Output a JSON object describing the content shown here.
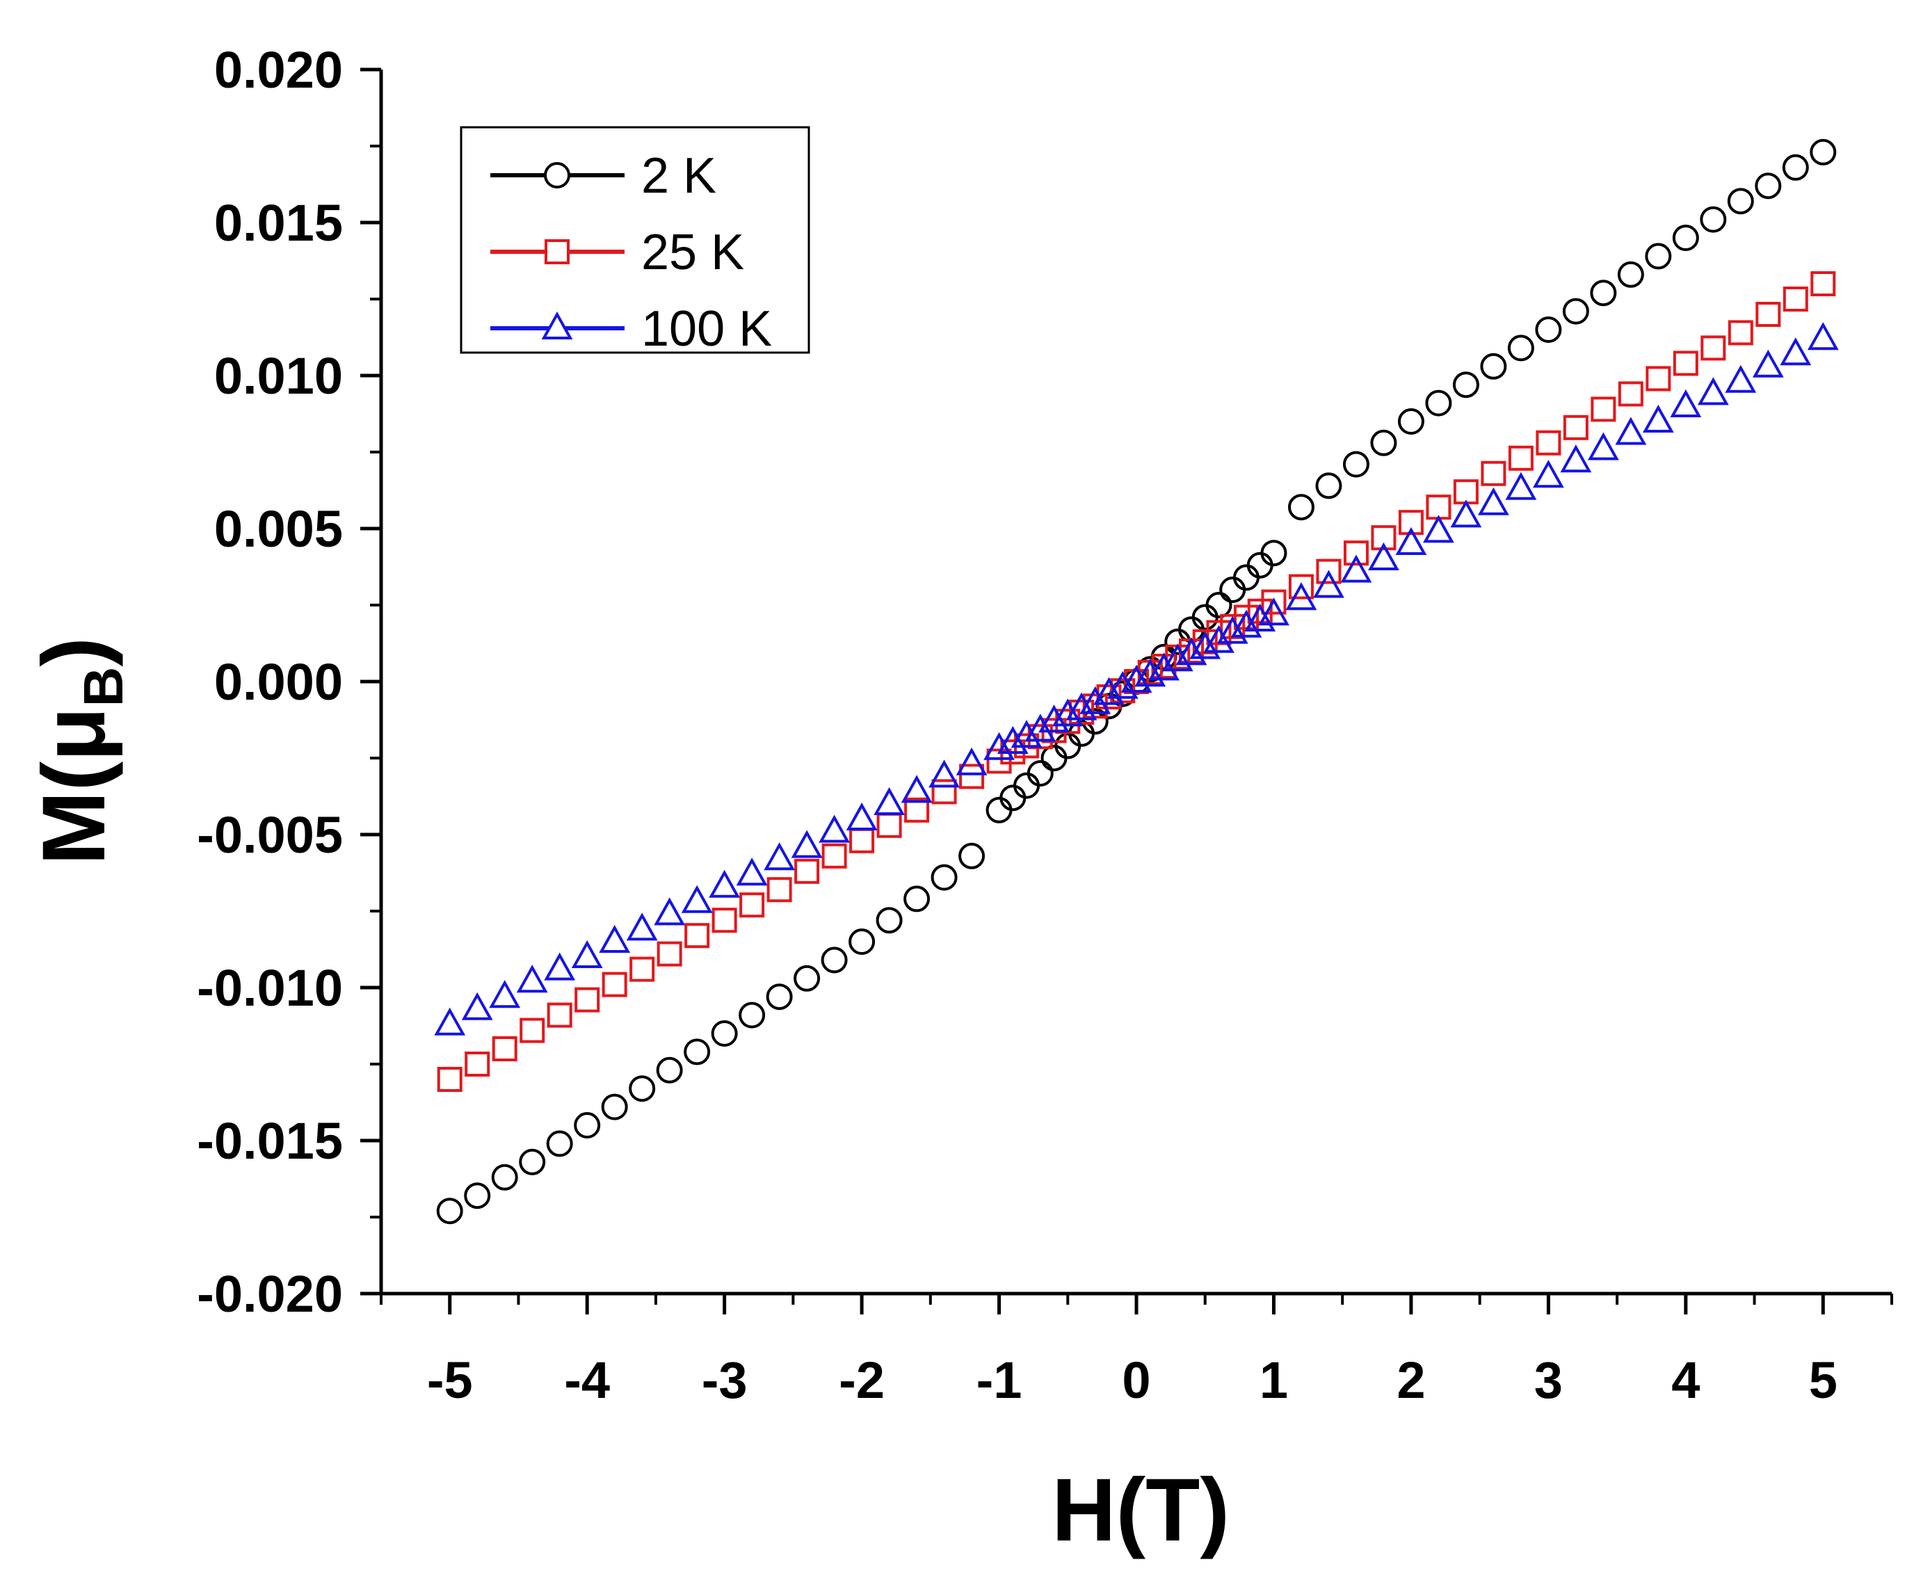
{
  "chart_data": {
    "type": "scatter",
    "title": "",
    "xlabel": "H(T)",
    "ylabel_main": "M",
    "ylabel_symbol": "μ",
    "ylabel_subscript": "B",
    "xlim": [
      -5.5,
      5.5
    ],
    "ylim": [
      -0.02,
      0.02
    ],
    "x_ticks": [
      -5,
      -4,
      -3,
      -2,
      -1,
      0,
      1,
      2,
      3,
      4,
      5
    ],
    "x_tick_labels": [
      "-5",
      "-4",
      "-3",
      "-2",
      "-1",
      "0",
      "1",
      "2",
      "3",
      "4",
      "5"
    ],
    "y_ticks": [
      -0.02,
      -0.015,
      -0.01,
      -0.005,
      0.0,
      0.005,
      0.01,
      0.015,
      0.02
    ],
    "y_tick_labels": [
      "-0.020",
      "-0.015",
      "-0.010",
      "-0.005",
      "0.000",
      "0.005",
      "0.010",
      "0.015",
      "0.020"
    ],
    "grid": false,
    "legend_position": "top-left",
    "series": [
      {
        "name": "2 K",
        "color": "#000000",
        "marker": "circle",
        "x": [
          -5.0,
          -4.8,
          -4.6,
          -4.4,
          -4.2,
          -4.0,
          -3.8,
          -3.6,
          -3.4,
          -3.2,
          -3.0,
          -2.8,
          -2.6,
          -2.4,
          -2.2,
          -2.0,
          -1.8,
          -1.6,
          -1.4,
          -1.2,
          -1.0,
          -0.9,
          -0.8,
          -0.7,
          -0.6,
          -0.5,
          -0.4,
          -0.3,
          -0.2,
          -0.1,
          0.0,
          0.1,
          0.2,
          0.3,
          0.4,
          0.5,
          0.6,
          0.7,
          0.8,
          0.9,
          1.0,
          1.2,
          1.4,
          1.6,
          1.8,
          2.0,
          2.2,
          2.4,
          2.6,
          2.8,
          3.0,
          3.2,
          3.4,
          3.6,
          3.8,
          4.0,
          4.2,
          4.4,
          4.6,
          4.8,
          5.0
        ],
        "y": [
          -0.0173,
          -0.0168,
          -0.0162,
          -0.0157,
          -0.0151,
          -0.0145,
          -0.0139,
          -0.0133,
          -0.0127,
          -0.0121,
          -0.0115,
          -0.0109,
          -0.0103,
          -0.0097,
          -0.0091,
          -0.0085,
          -0.0078,
          -0.0071,
          -0.0064,
          -0.0057,
          -0.0042,
          -0.0038,
          -0.0034,
          -0.003,
          -0.0025,
          -0.0021,
          -0.0017,
          -0.0013,
          -0.0008,
          -0.0004,
          0.0,
          0.0004,
          0.0008,
          0.0013,
          0.0017,
          0.0021,
          0.0025,
          0.003,
          0.0034,
          0.0038,
          0.0042,
          0.0057,
          0.0064,
          0.0071,
          0.0078,
          0.0085,
          0.0091,
          0.0097,
          0.0103,
          0.0109,
          0.0115,
          0.0121,
          0.0127,
          0.0133,
          0.0139,
          0.0145,
          0.0151,
          0.0157,
          0.0162,
          0.0168,
          0.0173
        ]
      },
      {
        "name": "25 K",
        "color": "#e3181c",
        "marker": "square",
        "x": [
          -5.0,
          -4.8,
          -4.6,
          -4.4,
          -4.2,
          -4.0,
          -3.8,
          -3.6,
          -3.4,
          -3.2,
          -3.0,
          -2.8,
          -2.6,
          -2.4,
          -2.2,
          -2.0,
          -1.8,
          -1.6,
          -1.4,
          -1.2,
          -1.0,
          -0.9,
          -0.8,
          -0.7,
          -0.6,
          -0.5,
          -0.4,
          -0.3,
          -0.2,
          -0.1,
          0.0,
          0.1,
          0.2,
          0.3,
          0.4,
          0.5,
          0.6,
          0.7,
          0.8,
          0.9,
          1.0,
          1.2,
          1.4,
          1.6,
          1.8,
          2.0,
          2.2,
          2.4,
          2.6,
          2.8,
          3.0,
          3.2,
          3.4,
          3.6,
          3.8,
          4.0,
          4.2,
          4.4,
          4.6,
          4.8,
          5.0
        ],
        "y": [
          -0.013,
          -0.0125,
          -0.012,
          -0.0114,
          -0.0109,
          -0.0104,
          -0.0099,
          -0.0094,
          -0.0089,
          -0.0083,
          -0.0078,
          -0.0073,
          -0.0068,
          -0.0062,
          -0.0057,
          -0.0052,
          -0.0047,
          -0.0042,
          -0.0036,
          -0.0031,
          -0.0026,
          -0.0023,
          -0.0021,
          -0.0018,
          -0.0016,
          -0.0013,
          -0.001,
          -0.0008,
          -0.0005,
          -0.0003,
          0.0,
          0.0003,
          0.0005,
          0.0008,
          0.001,
          0.0013,
          0.0016,
          0.0018,
          0.0021,
          0.0023,
          0.0026,
          0.0031,
          0.0036,
          0.0042,
          0.0047,
          0.0052,
          0.0057,
          0.0062,
          0.0068,
          0.0073,
          0.0078,
          0.0083,
          0.0089,
          0.0094,
          0.0099,
          0.0104,
          0.0109,
          0.0114,
          0.012,
          0.0125,
          0.013
        ]
      },
      {
        "name": "100 K",
        "color": "#1414e6",
        "marker": "triangle",
        "x": [
          -5.0,
          -4.8,
          -4.6,
          -4.4,
          -4.2,
          -4.0,
          -3.8,
          -3.6,
          -3.4,
          -3.2,
          -3.0,
          -2.8,
          -2.6,
          -2.4,
          -2.2,
          -2.0,
          -1.8,
          -1.6,
          -1.4,
          -1.2,
          -1.0,
          -0.9,
          -0.8,
          -0.7,
          -0.6,
          -0.5,
          -0.4,
          -0.3,
          -0.2,
          -0.1,
          0.0,
          0.1,
          0.2,
          0.3,
          0.4,
          0.5,
          0.6,
          0.7,
          0.8,
          0.9,
          1.0,
          1.2,
          1.4,
          1.6,
          1.8,
          2.0,
          2.2,
          2.4,
          2.6,
          2.8,
          3.0,
          3.2,
          3.4,
          3.6,
          3.8,
          4.0,
          4.2,
          4.4,
          4.6,
          4.8,
          5.0
        ],
        "y": [
          -0.0112,
          -0.0107,
          -0.0103,
          -0.0098,
          -0.0094,
          -0.009,
          -0.0085,
          -0.0081,
          -0.0076,
          -0.0072,
          -0.0067,
          -0.0063,
          -0.0058,
          -0.0054,
          -0.0049,
          -0.0045,
          -0.004,
          -0.0036,
          -0.0031,
          -0.0027,
          -0.0022,
          -0.002,
          -0.0018,
          -0.0016,
          -0.0013,
          -0.0011,
          -0.0009,
          -0.0007,
          -0.0004,
          -0.0002,
          0.0,
          0.0002,
          0.0004,
          0.0007,
          0.0009,
          0.0011,
          0.0013,
          0.0016,
          0.0018,
          0.002,
          0.0022,
          0.0027,
          0.0031,
          0.0036,
          0.004,
          0.0045,
          0.0049,
          0.0054,
          0.0058,
          0.0063,
          0.0067,
          0.0072,
          0.0076,
          0.0081,
          0.0085,
          0.009,
          0.0094,
          0.0098,
          0.0103,
          0.0107,
          0.0112
        ]
      }
    ]
  }
}
